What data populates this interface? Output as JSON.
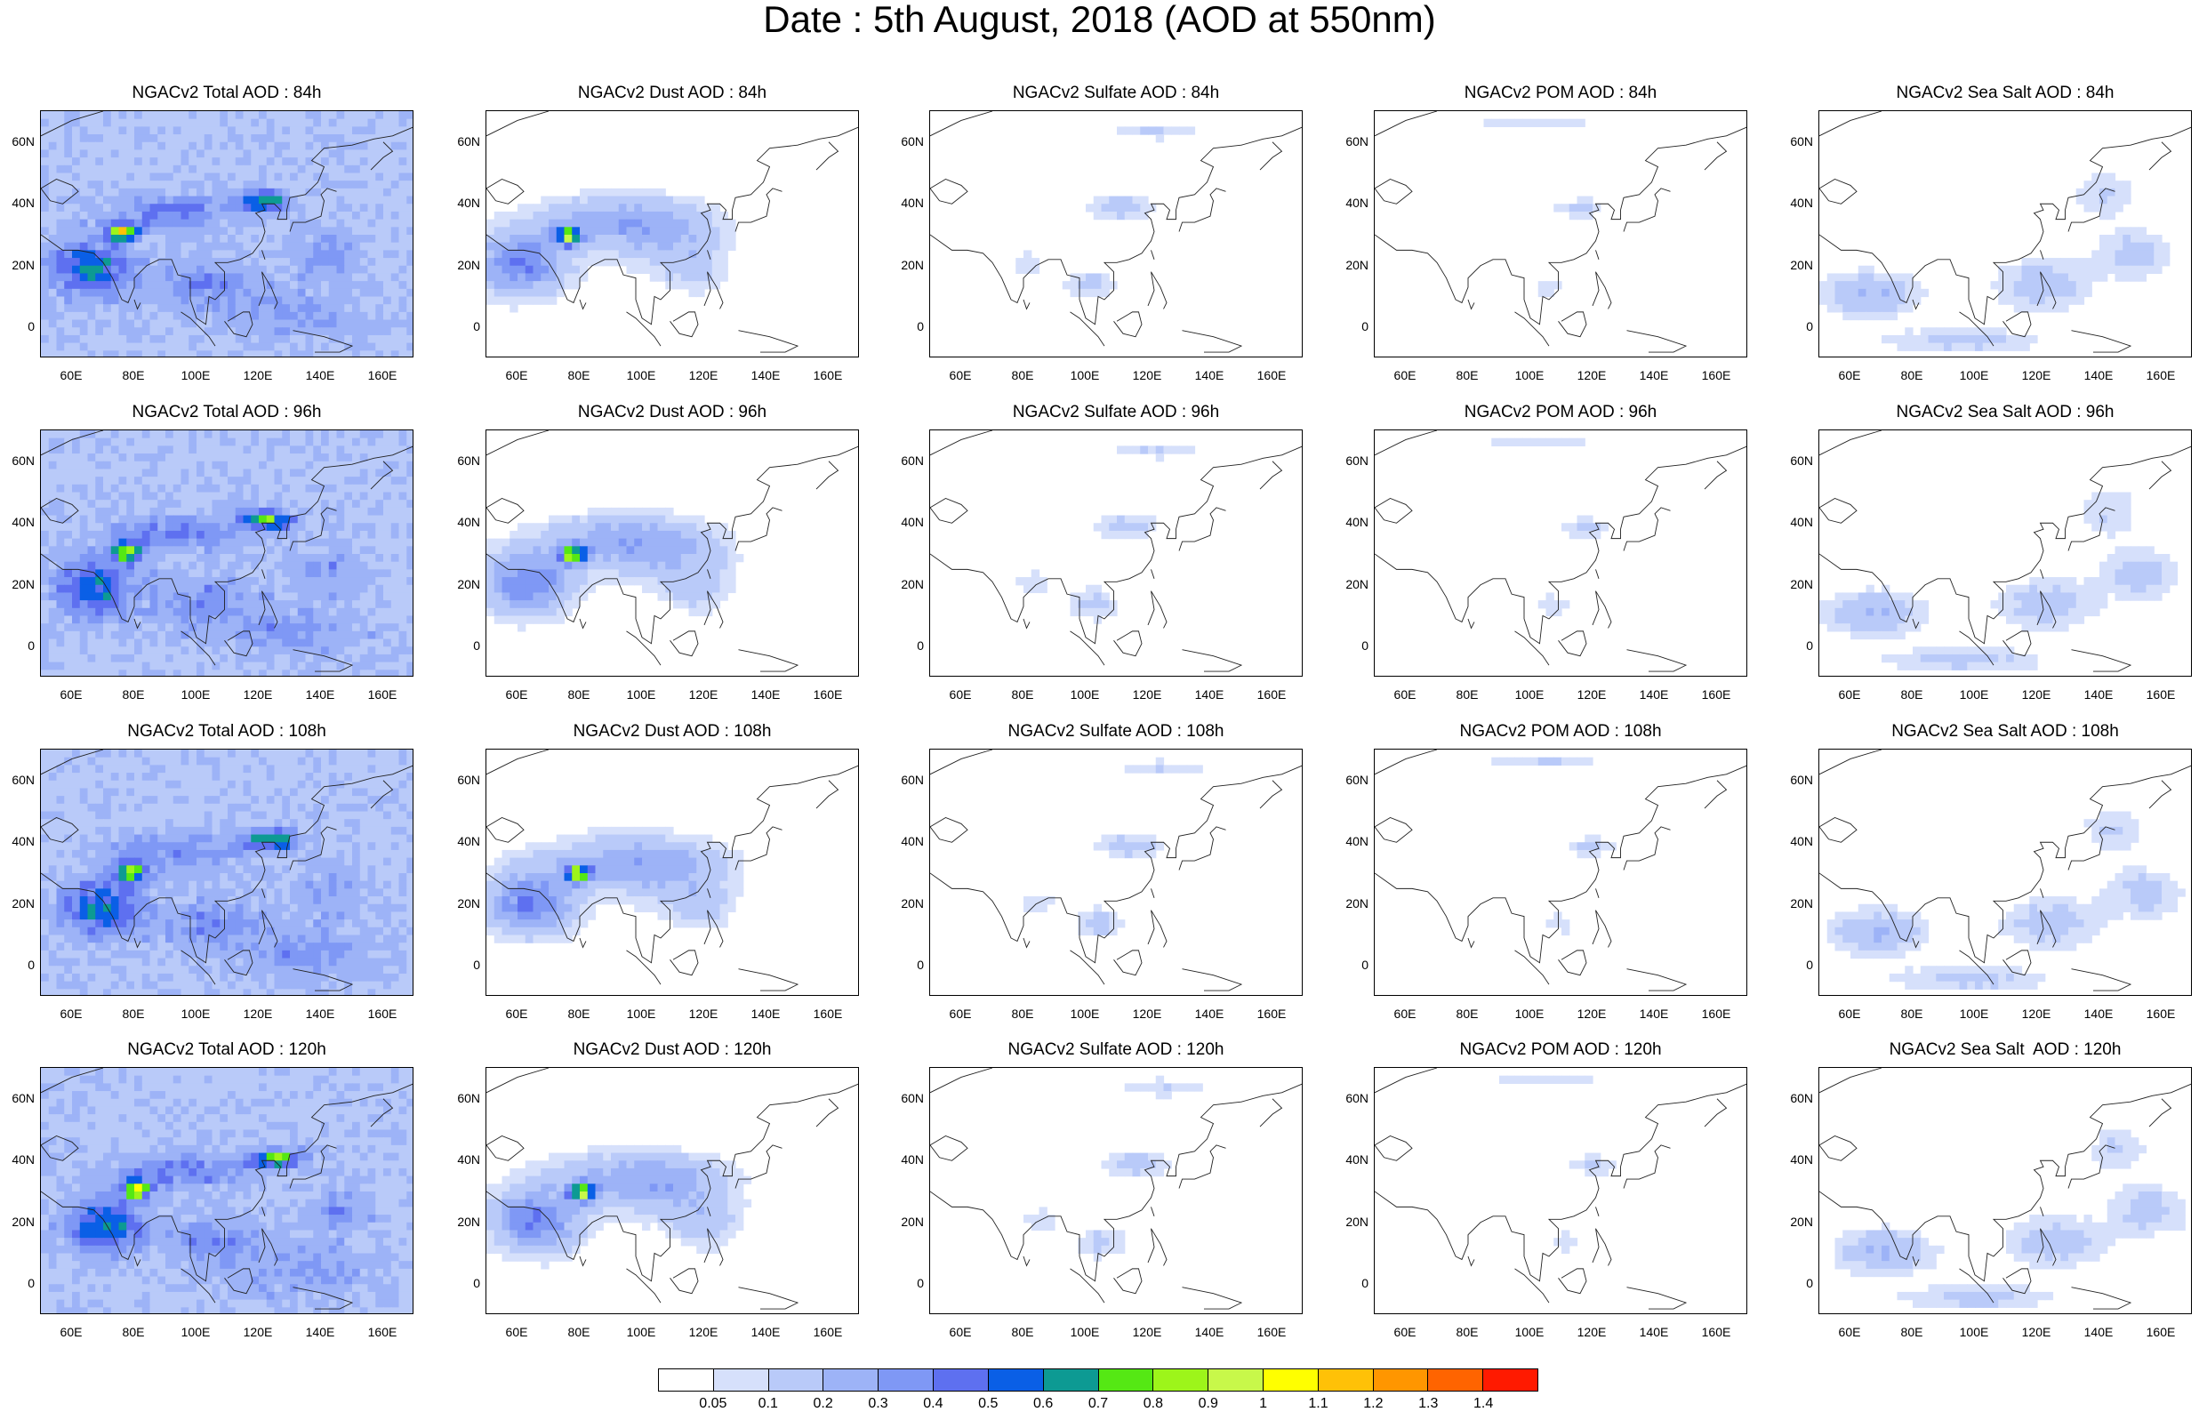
{
  "title": "Date : 5th August, 2018 (AOD at 550nm)",
  "panel_titles": [
    [
      "NGACv2 Total AOD : 84h",
      "NGACv2 Dust AOD : 84h",
      "NGACv2 Sulfate AOD : 84h",
      "NGACv2 POM AOD : 84h",
      "NGACv2 Sea Salt AOD : 84h"
    ],
    [
      "NGACv2 Total AOD : 96h",
      "NGACv2 Dust AOD : 96h",
      "NGACv2 Sulfate AOD : 96h",
      "NGACv2 POM AOD : 96h",
      "NGACv2 Sea Salt AOD : 96h"
    ],
    [
      "NGACv2 Total AOD : 108h",
      "NGACv2 Dust AOD : 108h",
      "NGACv2 Sulfate AOD : 108h",
      "NGACv2 POM AOD : 108h",
      "NGACv2 Sea Salt AOD : 108h"
    ],
    [
      "NGACv2 Total AOD : 120h",
      "NGACv2 Dust AOD : 120h",
      "NGACv2 Sulfate AOD : 120h",
      "NGACv2 POM AOD : 120h",
      "NGACv2 Sea Salt  AOD : 120h"
    ]
  ],
  "lat_ticks": [
    "60N",
    "40N",
    "20N",
    "0"
  ],
  "lon_ticks": [
    "60E",
    "80E",
    "100E",
    "120E",
    "140E",
    "160E"
  ],
  "colorbar": {
    "colors": [
      "#ffffff",
      "#d6e0fb",
      "#b9caf9",
      "#9db3f7",
      "#7f98f5",
      "#5e70f0",
      "#0a5fe6",
      "#0d9a93",
      "#55e814",
      "#9df51a",
      "#c8f84a",
      "#ffff00",
      "#ffc107",
      "#ff9600",
      "#ff6400",
      "#ff1a00"
    ],
    "labels": [
      "0.05",
      "0.1",
      "0.2",
      "0.3",
      "0.4",
      "0.5",
      "0.6",
      "0.7",
      "0.8",
      "0.9",
      "1",
      "1.1",
      "1.2",
      "1.3",
      "1.4"
    ]
  },
  "fields": {
    "Total": {
      "base": 0.18,
      "blobs": [
        [
          65,
          20,
          12,
          9,
          0.42
        ],
        [
          75,
          32,
          4,
          3,
          0.75
        ],
        [
          90,
          38,
          20,
          6,
          0.22
        ],
        [
          120,
          42,
          8,
          3,
          0.55
        ],
        [
          100,
          15,
          15,
          8,
          0.2
        ],
        [
          140,
          25,
          10,
          8,
          0.15
        ],
        [
          130,
          5,
          20,
          8,
          0.15
        ]
      ]
    },
    "Dust": {
      "base": 0.0,
      "blobs": [
        [
          60,
          22,
          14,
          10,
          0.4
        ],
        [
          75,
          31,
          4,
          3,
          0.75
        ],
        [
          90,
          36,
          25,
          8,
          0.22
        ],
        [
          105,
          30,
          20,
          10,
          0.14
        ],
        [
          115,
          20,
          10,
          8,
          0.12
        ]
      ]
    },
    "Sulfate": {
      "base": 0.0,
      "blobs": [
        [
          110,
          40,
          10,
          4,
          0.16
        ],
        [
          100,
          15,
          8,
          5,
          0.13
        ],
        [
          120,
          65,
          15,
          3,
          0.1
        ],
        [
          80,
          22,
          6,
          4,
          0.09
        ]
      ]
    },
    "POM": {
      "base": 0.0,
      "blobs": [
        [
          115,
          40,
          8,
          3,
          0.12
        ],
        [
          100,
          68,
          20,
          2,
          0.1
        ],
        [
          105,
          15,
          6,
          4,
          0.08
        ]
      ]
    },
    "SeaSalt": {
      "base": 0.0,
      "blobs": [
        [
          65,
          12,
          15,
          7,
          0.2
        ],
        [
          120,
          15,
          15,
          8,
          0.16
        ],
        [
          150,
          25,
          12,
          8,
          0.14
        ],
        [
          140,
          45,
          10,
          8,
          0.1
        ],
        [
          95,
          -3,
          25,
          4,
          0.13
        ]
      ]
    }
  }
}
